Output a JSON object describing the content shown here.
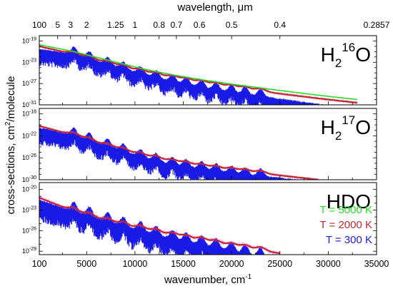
{
  "chart_data": {
    "type": "line",
    "title": "",
    "xlabel": "wavenumber, cm-1",
    "x_unit_label": "wavenumber, cm",
    "x_unit_exponent": "-1",
    "xlim": [
      100,
      35000
    ],
    "x_ticks": [
      100,
      5000,
      10000,
      15000,
      20000,
      25000,
      30000,
      35000
    ],
    "x_tick_labels": [
      "100",
      "5000",
      "10000",
      "15000",
      "20000",
      "25000",
      "30000",
      "35000"
    ],
    "top_axis": {
      "label": "wavelength, μm",
      "label_text": "wavelength, ",
      "label_unit": "μm",
      "ticks_um": [
        100,
        5,
        3,
        2,
        1.25,
        1,
        0.8,
        0.7,
        0.6,
        0.5,
        0.4,
        0.2857
      ],
      "tick_labels": [
        "100",
        "5",
        "3",
        "2",
        "1.25",
        "1",
        "0.8",
        "0.7",
        "0.6",
        "0.5",
        "0.4",
        "0.2857"
      ]
    },
    "ylabel": "cross-sections, cm2/molecule",
    "y_label_parts": [
      "cross-sections, cm",
      "2",
      "/molecule"
    ],
    "y_scale": "log",
    "legend": {
      "position": "bottom-right",
      "entries": [
        {
          "label": "T = 5000 K",
          "color": "#22dd22"
        },
        {
          "label": "T = 2000 K",
          "color": "#c0282d"
        },
        {
          "label": "T =   300 K",
          "color": "#1a1ae6"
        }
      ]
    },
    "colors": {
      "T5000": "#22dd22",
      "T2000": "#c0282d",
      "T300": "#1a1ae6",
      "T2000_band": "#e84bd6"
    },
    "panels": [
      {
        "molecule": "H216O",
        "label_parts": [
          "H",
          "2",
          "16",
          "O"
        ],
        "ylim_exp": [
          -31,
          -18
        ],
        "y_ticks_exp": [
          -19,
          -23,
          -27,
          -31
        ],
        "series": [
          {
            "temperature_K": 300,
            "x": [
              100,
              3700,
              7200,
              11000,
              14000,
              17000,
              20000,
              25000,
              29000,
              33000
            ],
            "log10_y": [
              -19.5,
              -20.3,
              -22.3,
              -24.2,
              -25.6,
              -26.6,
              -27.5,
              -28.8,
              -29.8,
              -30.7
            ]
          },
          {
            "temperature_K": 2000,
            "x": [
              100,
              3700,
              7200,
              11000,
              14000,
              17000,
              20000,
              25000,
              29000,
              33000
            ],
            "log10_y": [
              -19.6,
              -21.1,
              -22.8,
              -24.5,
              -25.6,
              -26.5,
              -27.3,
              -28.5,
              -29.4,
              -30.2
            ]
          },
          {
            "temperature_K": 5000,
            "x": [
              100,
              3700,
              7200,
              11000,
              14000,
              17000,
              20000,
              25000,
              29000,
              33000
            ],
            "log10_y": [
              -19.7,
              -21.0,
              -22.6,
              -24.3,
              -25.4,
              -26.3,
              -27.1,
              -28.3,
              -29.2,
              -30.0
            ]
          }
        ]
      },
      {
        "molecule": "H217O",
        "label_parts": [
          "H",
          "2",
          "17",
          "O"
        ],
        "ylim_exp": [
          -30,
          -17
        ],
        "y_ticks_exp": [
          -18,
          -22,
          -26,
          -30
        ],
        "series": [
          {
            "temperature_K": 300,
            "x": [
              100,
              3700,
              7200,
              11000,
              14000,
              17000,
              20000,
              25000,
              29000
            ],
            "log10_y": [
              -19.5,
              -20.8,
              -22.8,
              -24.9,
              -26.2,
              -26.9,
              -27.7,
              -28.6,
              -29.4
            ]
          },
          {
            "temperature_K": 2000,
            "x": [
              100,
              3700,
              7200,
              11000,
              14000,
              17000,
              20000,
              25000,
              29000
            ],
            "log10_y": [
              -19.8,
              -21.5,
              -23.5,
              -25.3,
              -26.4,
              -27.2,
              -27.9,
              -28.8,
              -29.6
            ]
          }
        ]
      },
      {
        "molecule": "HDO",
        "label_parts": [
          "HDO"
        ],
        "ylim_exp": [
          -29.5,
          -19
        ],
        "y_ticks_exp": [
          -20,
          -23,
          -26,
          -29
        ],
        "series": [
          {
            "temperature_K": 300,
            "x": [
              100,
              3700,
              7200,
              11000,
              14000,
              17000,
              20000,
              25000
            ],
            "log10_y": [
              -20.5,
              -22.1,
              -23.6,
              -25.1,
              -26.2,
              -27.0,
              -27.9,
              -29.3
            ]
          },
          {
            "temperature_K": 2000,
            "x": [
              100,
              3700,
              7200,
              11000,
              14000,
              17000,
              20000,
              25000
            ],
            "log10_y": [
              -20.8,
              -22.8,
              -24.3,
              -25.5,
              -26.4,
              -27.1,
              -27.9,
              -28.9
            ]
          }
        ]
      }
    ]
  }
}
